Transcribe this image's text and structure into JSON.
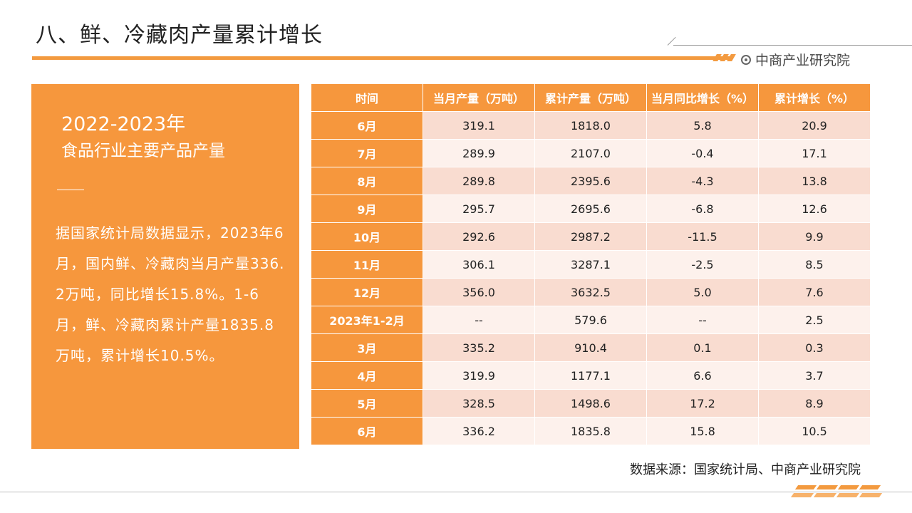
{
  "title": "八、鲜、冷藏肉产量累计增长",
  "brand": {
    "name": "中商产业研究院",
    "icon": "target-icon"
  },
  "panel": {
    "heading": "2022-2023年",
    "subheading": "食品行业主要产品产量",
    "body": "据国家统计局数据显示，2023年6月，国内鲜、冷藏肉当月产量336.2万吨，同比增长15.8%。1-6月，鲜、冷藏肉累计产量1835.8万吨，累计增长10.5%。"
  },
  "table": {
    "headers": [
      "时间",
      "当月产量（万吨）",
      "累计产量（万吨）",
      "当月同比增长（%）",
      "累计增长（%）"
    ],
    "rows": [
      [
        "6月",
        "319.1",
        "1818.0",
        "5.8",
        "20.9"
      ],
      [
        "7月",
        "289.9",
        "2107.0",
        "-0.4",
        "17.1"
      ],
      [
        "8月",
        "289.8",
        "2395.6",
        "-4.3",
        "13.8"
      ],
      [
        "9月",
        "295.7",
        "2695.6",
        "-6.8",
        "12.6"
      ],
      [
        "10月",
        "292.6",
        "2987.2",
        "-11.5",
        "9.9"
      ],
      [
        "11月",
        "306.1",
        "3287.1",
        "-2.5",
        "8.5"
      ],
      [
        "12月",
        "356.0",
        "3632.5",
        "5.0",
        "7.6"
      ],
      [
        "2023年1-2月",
        "--",
        "579.6",
        "--",
        "2.5"
      ],
      [
        "3月",
        "335.2",
        "910.4",
        "0.1",
        "0.3"
      ],
      [
        "4月",
        "319.9",
        "1177.1",
        "6.6",
        "3.7"
      ],
      [
        "5月",
        "328.5",
        "1498.6",
        "17.2",
        "8.9"
      ],
      [
        "6月",
        "336.2",
        "1835.8",
        "15.8",
        "10.5"
      ]
    ]
  },
  "source": "数据来源：国家统计局、中商产业研究院",
  "colors": {
    "accent": "#f6973d",
    "row_odd": "#f9dcd0",
    "row_even": "#fdf1ec"
  }
}
